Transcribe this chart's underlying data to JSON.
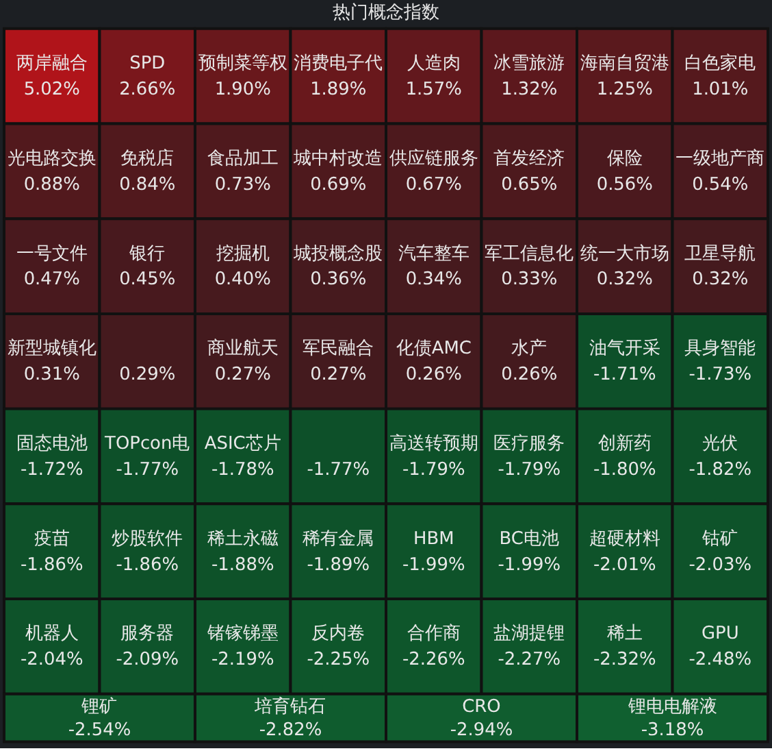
{
  "chart_data": {
    "type": "other",
    "title": "热门概念指数",
    "categories": [
      "两岸融合",
      "SPD",
      "预制菜等权",
      "消费电子代",
      "人造肉",
      "冰雪旅游",
      "海南自贸港",
      "白色家电",
      "光电路交换",
      "免税店",
      "食品加工",
      "城中村改造",
      "供应链服务",
      "首发经济",
      "保险",
      "一级地产商",
      "一号文件",
      "银行",
      "挖掘机",
      "城投概念股",
      "汽车整车",
      "军工信息化",
      "统一大市场",
      "卫星导航",
      "新型城镇化",
      null,
      "商业航天",
      "军民融合",
      "化债AMC",
      "水产",
      "油气开采",
      "具身智能",
      "固态电池",
      "TOPcon电",
      "ASIC芯片",
      null,
      "高送转预期",
      "医疗服务",
      "创新药",
      "光伏",
      "疫苗",
      "炒股软件",
      "稀土永磁",
      "稀有金属",
      "HBM",
      "BC电池",
      "超硬材料",
      "钴矿",
      "机器人",
      "服务器",
      "锗镓锑墨",
      "反内卷",
      "合作商",
      "盐湖提锂",
      "稀土",
      "GPU",
      "锂矿",
      "培育钻石",
      "CRO",
      "锂电电解液"
    ],
    "values": [
      5.02,
      2.66,
      1.9,
      1.89,
      1.57,
      1.32,
      1.25,
      1.01,
      0.88,
      0.84,
      0.73,
      0.69,
      0.67,
      0.65,
      0.56,
      0.54,
      0.47,
      0.45,
      0.4,
      0.36,
      0.34,
      0.33,
      0.32,
      0.32,
      0.31,
      0.29,
      0.27,
      0.27,
      0.26,
      0.26,
      -1.71,
      -1.73,
      -1.72,
      -1.77,
      -1.78,
      -1.77,
      -1.79,
      -1.79,
      -1.8,
      -1.82,
      -1.86,
      -1.86,
      -1.88,
      -1.89,
      -1.99,
      -1.99,
      -2.01,
      -2.03,
      -2.04,
      -2.09,
      -2.19,
      -2.25,
      -2.26,
      -2.27,
      -2.32,
      -2.48,
      -2.54,
      -2.82,
      -2.94,
      -3.18
    ],
    "value_labels": [
      "5.02%",
      "2.66%",
      "1.90%",
      "1.89%",
      "1.57%",
      "1.32%",
      "1.25%",
      "1.01%",
      "0.88%",
      "0.84%",
      "0.73%",
      "0.69%",
      "0.67%",
      "0.65%",
      "0.56%",
      "0.54%",
      "0.47%",
      "0.45%",
      "0.40%",
      "0.36%",
      "0.34%",
      "0.33%",
      "0.32%",
      "0.32%",
      "0.31%",
      "0.29%",
      "0.27%",
      "0.27%",
      "0.26%",
      "0.26%",
      "-1.71%",
      "-1.73%",
      "-1.72%",
      "-1.77%",
      "-1.78%",
      "-1.77%",
      "-1.79%",
      "-1.79%",
      "-1.80%",
      "-1.82%",
      "-1.86%",
      "-1.86%",
      "-1.88%",
      "-1.89%",
      "-1.99%",
      "-1.99%",
      "-2.01%",
      "-2.03%",
      "-2.04%",
      "-2.09%",
      "-2.19%",
      "-2.25%",
      "-2.26%",
      "-2.27%",
      "-2.32%",
      "-2.48%",
      "-2.54%",
      "-2.82%",
      "-2.94%",
      "-3.18%"
    ]
  }
}
